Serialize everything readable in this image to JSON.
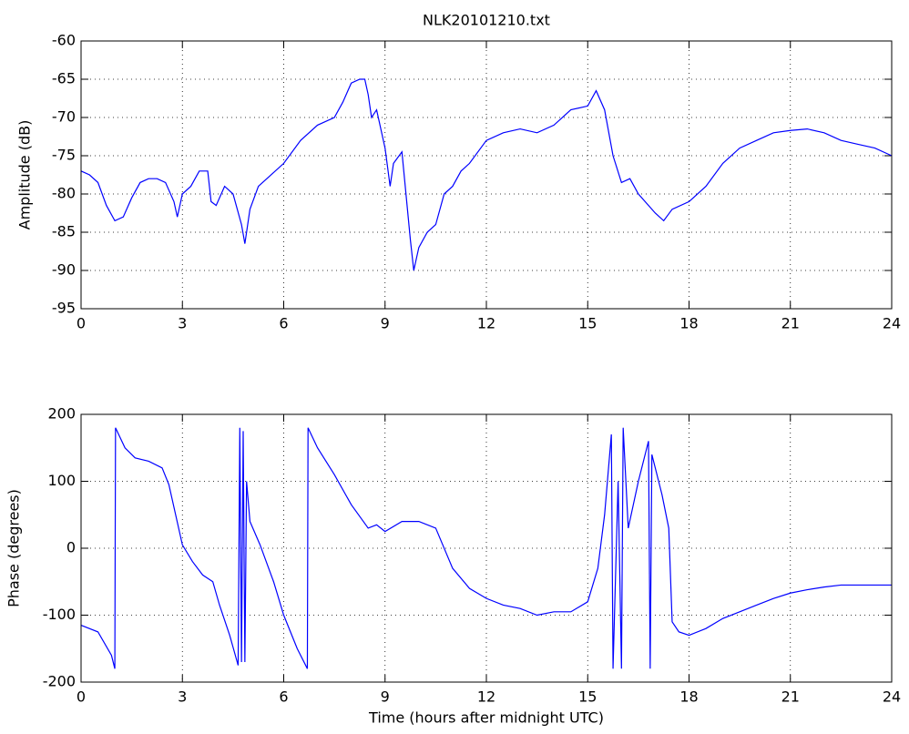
{
  "chart_data": [
    {
      "type": "line",
      "title": "NLK20101210.txt",
      "y_label": "Amplitude (dB)",
      "x": [
        0,
        0.25,
        0.5,
        0.75,
        1.0,
        1.25,
        1.5,
        1.75,
        2.0,
        2.25,
        2.5,
        2.75,
        2.85,
        3.0,
        3.25,
        3.5,
        3.75,
        3.85,
        4.0,
        4.25,
        4.5,
        4.75,
        4.85,
        5.0,
        5.25,
        5.5,
        6.0,
        6.5,
        7.0,
        7.5,
        7.75,
        8.0,
        8.25,
        8.4,
        8.5,
        8.6,
        8.75,
        9.0,
        9.15,
        9.25,
        9.5,
        9.75,
        9.85,
        10.0,
        10.25,
        10.5,
        10.75,
        11.0,
        11.25,
        11.5,
        12.0,
        12.5,
        13.0,
        13.5,
        14.0,
        14.5,
        15.0,
        15.25,
        15.5,
        15.75,
        16.0,
        16.25,
        16.5,
        17.0,
        17.25,
        17.5,
        18.0,
        18.5,
        19.0,
        19.5,
        20.0,
        20.5,
        21.0,
        21.5,
        22.0,
        22.5,
        23.0,
        23.5,
        24
      ],
      "series": [
        {
          "color": "#0000ff",
          "values": [
            -77,
            -77.5,
            -78.5,
            -81.5,
            -83.5,
            -83,
            -80.5,
            -78.5,
            -78,
            -78,
            -78.5,
            -81,
            -83,
            -80,
            -79,
            -77,
            -77,
            -81,
            -81.5,
            -79,
            -80,
            -84,
            -86.5,
            -82,
            -79,
            -78,
            -76,
            -73,
            -71,
            -70,
            -68,
            -65.5,
            -65,
            -65,
            -67,
            -70,
            -69,
            -74,
            -79,
            -76,
            -74.5,
            -86,
            -90,
            -87,
            -85,
            -84,
            -80,
            -79,
            -77,
            -76,
            -73,
            -72,
            -71.5,
            -72,
            -71,
            -69,
            -68.5,
            -66.5,
            -69,
            -75,
            -78.5,
            -78,
            -80,
            -82.5,
            -83.5,
            -82,
            -81,
            -79,
            -76,
            -74,
            -73,
            -72,
            -71.7,
            -71.5,
            -72,
            -73,
            -73.5,
            -74,
            -75
          ]
        }
      ],
      "xlim": [
        0,
        24
      ],
      "xticks": [
        0,
        3,
        6,
        9,
        12,
        15,
        18,
        21,
        24
      ],
      "ylim": [
        -95,
        -60
      ],
      "yticks": [
        -95,
        -90,
        -85,
        -80,
        -75,
        -70,
        -65,
        -60
      ],
      "grid": true
    },
    {
      "type": "line",
      "x_label": "Time (hours after midnight UTC)",
      "y_label": "Phase (degrees)",
      "x": [
        0,
        0.5,
        0.9,
        1.0,
        1.02,
        1.3,
        1.6,
        2.0,
        2.4,
        2.6,
        2.8,
        3.0,
        3.3,
        3.6,
        3.9,
        4.1,
        4.4,
        4.65,
        4.7,
        4.75,
        4.8,
        4.85,
        4.9,
        5.0,
        5.3,
        5.7,
        6.0,
        6.4,
        6.7,
        6.72,
        7.0,
        7.5,
        8.0,
        8.5,
        8.75,
        9.0,
        9.5,
        10.0,
        10.5,
        11.0,
        11.5,
        12.0,
        12.5,
        13.0,
        13.5,
        14.0,
        14.5,
        15.0,
        15.3,
        15.5,
        15.7,
        15.75,
        15.9,
        16.0,
        16.05,
        16.2,
        16.5,
        16.8,
        16.85,
        16.9,
        17.2,
        17.4,
        17.5,
        17.7,
        18.0,
        18.5,
        19.0,
        19.5,
        20.0,
        20.5,
        21.0,
        21.5,
        22.0,
        22.5,
        23.0,
        24
      ],
      "series": [
        {
          "color": "#0000ff",
          "values": [
            -115,
            -125,
            -160,
            -180,
            180,
            150,
            135,
            130,
            120,
            95,
            50,
            5,
            -20,
            -40,
            -50,
            -85,
            -130,
            -175,
            180,
            -170,
            175,
            -170,
            100,
            40,
            5,
            -50,
            -100,
            -150,
            -180,
            180,
            150,
            110,
            65,
            30,
            35,
            25,
            40,
            40,
            30,
            -30,
            -60,
            -75,
            -85,
            -90,
            -100,
            -95,
            -95,
            -80,
            -30,
            50,
            170,
            -180,
            100,
            -180,
            180,
            30,
            100,
            160,
            -180,
            140,
            80,
            30,
            -110,
            -125,
            -130,
            -120,
            -105,
            -95,
            -85,
            -75,
            -67,
            -62,
            -58,
            -55,
            -55,
            -55
          ]
        }
      ],
      "xlim": [
        0,
        24
      ],
      "xticks": [
        0,
        3,
        6,
        9,
        12,
        15,
        18,
        21,
        24
      ],
      "ylim": [
        -200,
        200
      ],
      "yticks": [
        -200,
        -100,
        0,
        100,
        200
      ],
      "grid": true
    }
  ]
}
